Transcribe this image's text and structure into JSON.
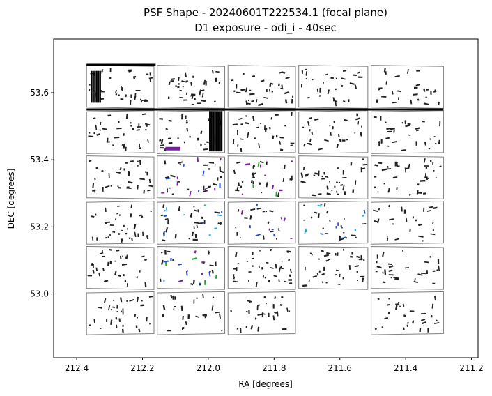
{
  "chart_data": {
    "type": "scatter",
    "title": "PSF Shape - 20240601T222534.1 (focal plane)",
    "subtitle": "D1 exposure - odi_i - 40sec",
    "xlabel": "RA [degrees]",
    "ylabel": "DEC [degrees]",
    "xlim": [
      212.47,
      211.18
    ],
    "ylim": [
      52.81,
      53.76
    ],
    "x_inverted": true,
    "grid": false,
    "xticks": [
      212.4,
      212.2,
      212.0,
      211.8,
      211.6,
      211.4,
      211.2
    ],
    "xtick_labels": [
      "212.4",
      "212.2",
      "212.0",
      "211.8",
      "211.6",
      "211.4",
      "211.2"
    ],
    "yticks": [
      53.0,
      53.2,
      53.4,
      53.6
    ],
    "ytick_labels": [
      "53.0",
      "53.2",
      "53.4",
      "53.6"
    ],
    "ccd_grid": {
      "columns_ra": [
        [
          212.37,
          212.165
        ],
        [
          212.155,
          211.95
        ],
        [
          211.94,
          211.735
        ],
        [
          211.725,
          211.515
        ],
        [
          211.505,
          211.285
        ]
      ],
      "rows_dec": [
        [
          53.68,
          53.555
        ],
        [
          53.545,
          53.42
        ],
        [
          53.41,
          53.285
        ],
        [
          53.275,
          53.15
        ],
        [
          53.14,
          53.015
        ],
        [
          53.005,
          52.88
        ]
      ],
      "missing_cells": [
        [
          5,
          3
        ]
      ]
    },
    "colors": {
      "whisker_default": "#222222",
      "ccd_outline": "#808080",
      "accent_purple": "#7b1fa2",
      "accent_blue": "#1f4fc9",
      "accent_cyan": "#2aa7d8",
      "accent_green": "#2ca02c",
      "accent_yellow": "#e5d51a"
    }
  }
}
